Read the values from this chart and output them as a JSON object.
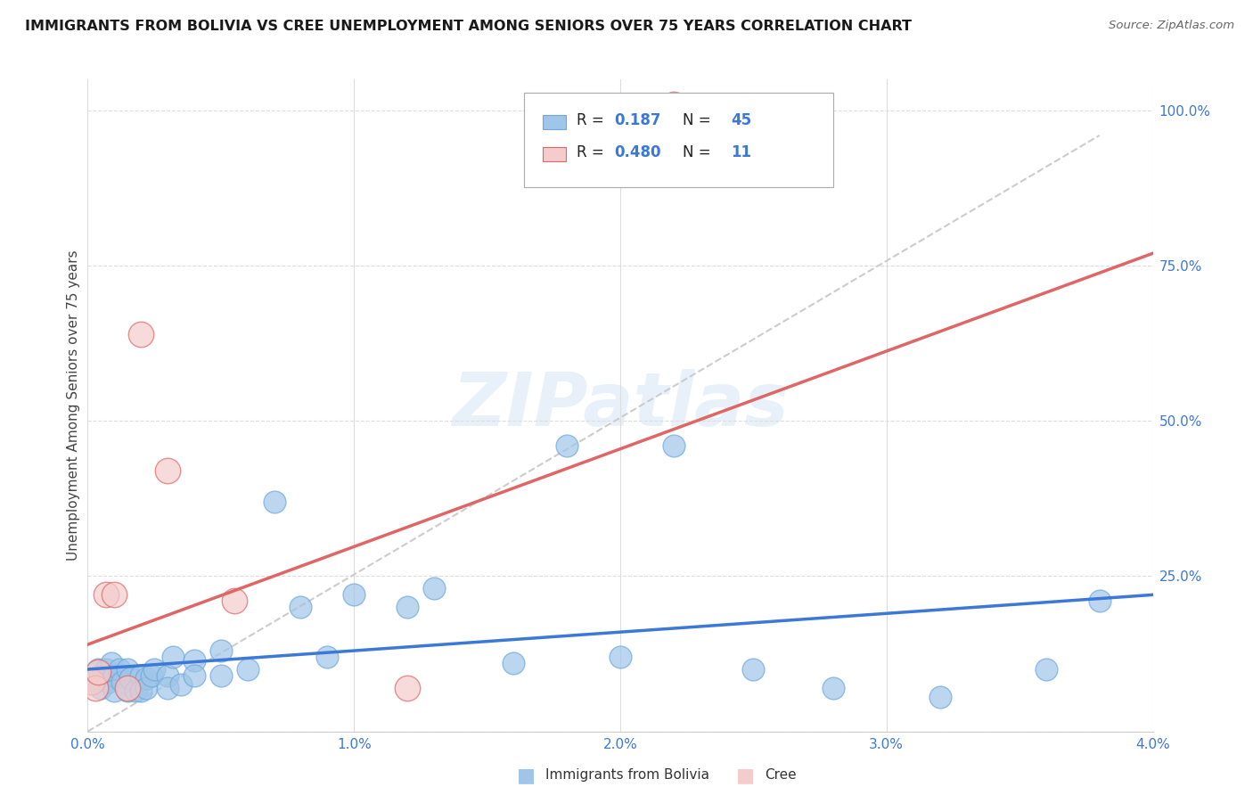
{
  "title": "IMMIGRANTS FROM BOLIVIA VS CREE UNEMPLOYMENT AMONG SENIORS OVER 75 YEARS CORRELATION CHART",
  "source": "Source: ZipAtlas.com",
  "ylabel": "Unemployment Among Seniors over 75 years",
  "ytick_labels": [
    "",
    "25.0%",
    "50.0%",
    "75.0%",
    "100.0%"
  ],
  "ytick_vals": [
    0.0,
    0.25,
    0.5,
    0.75,
    1.0
  ],
  "xtick_labels": [
    "0.0%",
    "1.0%",
    "2.0%",
    "3.0%",
    "4.0%"
  ],
  "xtick_vals": [
    0.0,
    0.01,
    0.02,
    0.03,
    0.04
  ],
  "xlim": [
    0.0,
    0.04
  ],
  "ylim": [
    0.0,
    1.05
  ],
  "watermark": "ZIPatlas",
  "blue_fill": "#9fc5e8",
  "blue_edge": "#6fa8dc",
  "blue_line": "#3c78d8",
  "pink_fill": "#f4cccc",
  "pink_edge": "#e06666",
  "pink_line": "#cc4125",
  "dash_color": "#cccccc",
  "grid_color": "#dddddd",
  "bolivia_x": [
    0.00025,
    0.0004,
    0.0005,
    0.0006,
    0.0007,
    0.0008,
    0.0009,
    0.001,
    0.001,
    0.0012,
    0.0013,
    0.0015,
    0.0015,
    0.0016,
    0.0018,
    0.002,
    0.002,
    0.0022,
    0.0022,
    0.0024,
    0.0025,
    0.003,
    0.003,
    0.0032,
    0.0035,
    0.004,
    0.004,
    0.005,
    0.005,
    0.006,
    0.007,
    0.008,
    0.009,
    0.01,
    0.012,
    0.013,
    0.016,
    0.018,
    0.02,
    0.022,
    0.025,
    0.028,
    0.032,
    0.036,
    0.038
  ],
  "bolivia_y": [
    0.08,
    0.1,
    0.07,
    0.09,
    0.1,
    0.08,
    0.11,
    0.09,
    0.065,
    0.1,
    0.08,
    0.1,
    0.065,
    0.085,
    0.065,
    0.09,
    0.065,
    0.085,
    0.07,
    0.09,
    0.1,
    0.09,
    0.07,
    0.12,
    0.075,
    0.115,
    0.09,
    0.13,
    0.09,
    0.1,
    0.37,
    0.2,
    0.12,
    0.22,
    0.2,
    0.23,
    0.11,
    0.46,
    0.12,
    0.46,
    0.1,
    0.07,
    0.055,
    0.1,
    0.21
  ],
  "cree_x": [
    0.00015,
    0.0003,
    0.0004,
    0.0007,
    0.001,
    0.0015,
    0.002,
    0.003,
    0.0055,
    0.012,
    0.022
  ],
  "cree_y": [
    0.08,
    0.07,
    0.095,
    0.22,
    0.22,
    0.07,
    0.64,
    0.42,
    0.21,
    0.07,
    1.01
  ],
  "bolivia_line_x": [
    0.0,
    0.04
  ],
  "bolivia_line_y": [
    0.1,
    0.22
  ],
  "cree_line_x": [
    0.0,
    0.04
  ],
  "cree_line_y": [
    0.14,
    0.77
  ],
  "dash_line_x": [
    0.0,
    0.038
  ],
  "dash_line_y": [
    0.0,
    0.96
  ]
}
